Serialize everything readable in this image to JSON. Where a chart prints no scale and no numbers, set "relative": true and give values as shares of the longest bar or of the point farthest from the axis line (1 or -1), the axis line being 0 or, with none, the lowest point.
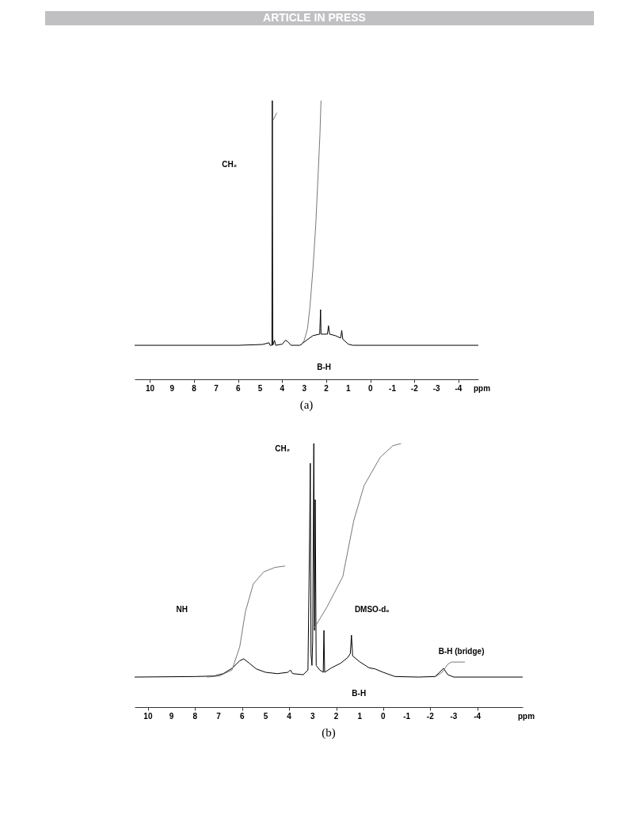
{
  "chart_data": [
    {
      "type": "line",
      "title": "(a)",
      "xlabel": "ppm",
      "relative": true,
      "xlim": [
        10.7,
        -4.9
      ],
      "xticks": [
        10,
        9,
        8,
        7,
        6,
        5,
        4,
        3,
        2,
        1,
        0,
        -1,
        -2,
        -3,
        -4
      ],
      "tick_labels": "x",
      "grid": false,
      "marker": "none",
      "line_style": "solid",
      "series": [
        {
          "color": "#000000",
          "x": [
            10.7,
            6.0,
            4.9,
            4.6,
            4.55,
            4.47,
            4.45,
            4.43,
            4.35,
            4.3,
            4.0,
            3.85,
            3.75,
            3.6,
            3.2,
            2.9,
            2.6,
            2.3,
            2.26,
            2.24,
            1.95,
            1.9,
            1.85,
            1.6,
            1.35,
            1.3,
            1.25,
            1.0,
            0.8,
            -4.9
          ],
          "values": [
            0.122,
            0.122,
            0.125,
            0.131,
            0.122,
            0.122,
            1,
            0.122,
            0.14,
            0.122,
            0.126,
            0.14,
            0.135,
            0.122,
            0.122,
            0.14,
            0.157,
            0.162,
            0.25,
            0.162,
            0.162,
            0.192,
            0.162,
            0.157,
            0.148,
            0.175,
            0.144,
            0.126,
            0.122,
            0.122
          ]
        },
        {
          "color": "#777777",
          "x": [
            4.41,
            4.25
          ],
          "values": [
            0.93,
            0.956
          ]
        },
        {
          "color": "#777777",
          "x": [
            3.15,
            3.0,
            2.85,
            2.74,
            2.6,
            2.48,
            2.38,
            2.29,
            2.24
          ],
          "values": [
            0.122,
            0.14,
            0.183,
            0.262,
            0.403,
            0.552,
            0.719,
            0.877,
            1
          ]
        }
      ],
      "annotations": [
        "ARTICLE IN PRESS",
        "CH₂",
        "B-H"
      ]
    },
    {
      "type": "line",
      "title": "(b)",
      "xlabel": "ppm",
      "relative": true,
      "xlim": [
        10.57,
        -5.93
      ],
      "xticks": [
        10,
        9,
        8,
        7,
        6,
        5,
        4,
        3,
        2,
        1,
        0,
        -1,
        -2,
        -3,
        -4
      ],
      "tick_labels": "x",
      "grid": false,
      "marker": "none",
      "line_style": "solid",
      "series": [
        {
          "color": "#000000",
          "x": [
            10.57,
            8,
            7.2,
            6.8,
            6.4,
            6.1,
            5.93,
            5.7,
            5.4,
            5.0,
            4.5,
            4.05,
            3.95,
            3.85,
            3.4,
            3.2,
            3.13,
            3.1,
            3.07,
            3.03,
            3.0,
            2.95,
            2.92,
            2.89,
            2.85,
            2.7,
            2.55,
            2.52,
            2.49,
            2.2,
            1.8,
            1.5,
            1.4,
            1.35,
            1.3,
            1.0,
            0.6,
            0.35,
            0.0,
            -0.5,
            -1.5,
            -2.2,
            -2.4,
            -2.56,
            -2.75,
            -3.0,
            -5.93
          ],
          "values": [
            0.114,
            0.116,
            0.118,
            0.127,
            0.149,
            0.176,
            0.183,
            0.167,
            0.145,
            0.132,
            0.127,
            0.132,
            0.141,
            0.127,
            0.123,
            0.141,
            0.646,
            0.925,
            0.203,
            0.158,
            0.247,
            1,
            0.291,
            0.787,
            0.158,
            0.141,
            0.132,
            0.291,
            0.132,
            0.149,
            0.167,
            0.189,
            0.203,
            0.273,
            0.194,
            0.172,
            0.149,
            0.145,
            0.132,
            0.116,
            0.114,
            0.116,
            0.132,
            0.147,
            0.123,
            0.114,
            0.114
          ]
        },
        {
          "color": "#777777",
          "x": [
            7.5,
            6.97,
            6.43,
            6.1,
            5.86,
            5.52,
            5.08,
            4.6,
            4.17
          ],
          "values": [
            0.114,
            0.118,
            0.141,
            0.229,
            0.362,
            0.468,
            0.513,
            0.53,
            0.535
          ]
        },
        {
          "color": "#777777",
          "x": [
            2.93,
            2.39,
            1.72,
            1.25,
            0.81,
            0.13,
            -0.4,
            -0.77
          ],
          "values": [
            0.3,
            0.38,
            0.495,
            0.708,
            0.841,
            0.947,
            0.991,
            1.0
          ]
        },
        {
          "color": "#777777",
          "x": [
            -2.2,
            -2.5,
            -2.75,
            -2.9,
            -3.47
          ],
          "values": [
            0.114,
            0.132,
            0.163,
            0.171,
            0.171
          ]
        }
      ],
      "annotations": [
        "CH₂",
        "NH",
        "DMSO-d₆",
        "B-H (bridge)",
        "B-H"
      ]
    }
  ]
}
